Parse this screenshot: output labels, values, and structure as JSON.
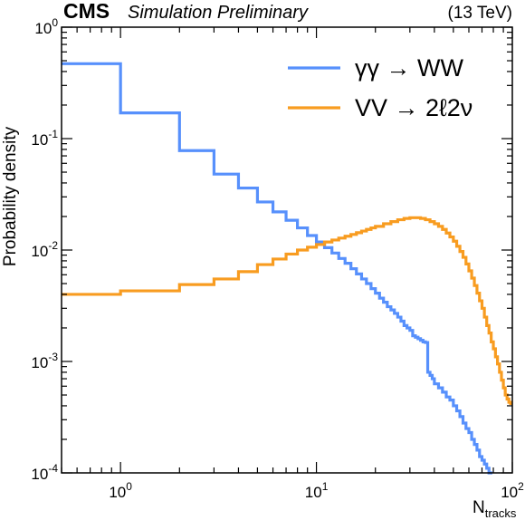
{
  "chart_data": {
    "type": "line",
    "experiment": "CMS",
    "subtitle": "Simulation Preliminary",
    "energy_label": "(13 TeV)",
    "xlabel": {
      "main": "N",
      "sub": "tracks"
    },
    "ylabel": "Probability density",
    "x_scale": "log",
    "y_scale": "log",
    "xlim": [
      0.5,
      100
    ],
    "ylim": [
      0.0001,
      1
    ],
    "x_ticks": [
      {
        "base": "10",
        "exp": "0",
        "value": 1
      },
      {
        "base": "10",
        "exp": "1",
        "value": 10
      },
      {
        "base": "10",
        "exp": "2",
        "value": 100
      }
    ],
    "y_ticks": [
      {
        "base": "10",
        "exp": "0",
        "value": 1
      },
      {
        "base": "10",
        "exp": "-1",
        "value": 0.1
      },
      {
        "base": "10",
        "exp": "-2",
        "value": 0.01
      },
      {
        "base": "10",
        "exp": "-3",
        "value": 0.001
      },
      {
        "base": "10",
        "exp": "-4",
        "value": 0.0001
      }
    ],
    "grid": false,
    "legend_position": "top-right",
    "series": [
      {
        "name": "γγ → WW",
        "color": "#5790fc",
        "drawstyle": "steps-post",
        "points": [
          [
            0.5,
            0.47
          ],
          [
            1,
            0.17
          ],
          [
            2,
            0.078
          ],
          [
            3,
            0.048
          ],
          [
            4,
            0.036
          ],
          [
            5,
            0.027
          ],
          [
            6,
            0.022
          ],
          [
            7,
            0.0185
          ],
          [
            8,
            0.0158
          ],
          [
            9,
            0.0135
          ],
          [
            10,
            0.0118
          ],
          [
            11,
            0.0105
          ],
          [
            12,
            0.0094
          ],
          [
            13,
            0.0084
          ],
          [
            14,
            0.0076
          ],
          [
            15,
            0.0068
          ],
          [
            16,
            0.0061
          ],
          [
            17,
            0.0055
          ],
          [
            18,
            0.005
          ],
          [
            19,
            0.0045
          ],
          [
            20,
            0.0041
          ],
          [
            21,
            0.0037
          ],
          [
            22,
            0.0034
          ],
          [
            23,
            0.0031
          ],
          [
            24,
            0.0029
          ],
          [
            25,
            0.0027
          ],
          [
            26,
            0.0025
          ],
          [
            27,
            0.0023
          ],
          [
            28,
            0.0021
          ],
          [
            29,
            0.002
          ],
          [
            30,
            0.0019
          ],
          [
            31,
            0.0017
          ],
          [
            32,
            0.00165
          ],
          [
            33,
            0.0016
          ],
          [
            34,
            0.00155
          ],
          [
            35,
            0.0015
          ],
          [
            36,
            0.00148
          ],
          [
            37,
            0.0008
          ],
          [
            38,
            0.00075
          ],
          [
            39,
            0.0007
          ],
          [
            40,
            0.00063
          ],
          [
            42,
            0.00058
          ],
          [
            44,
            0.00053
          ],
          [
            46,
            0.00048
          ],
          [
            48,
            0.00045
          ],
          [
            50,
            0.0004
          ],
          [
            52,
            0.00036
          ],
          [
            54,
            0.00032
          ],
          [
            56,
            0.00028
          ],
          [
            58,
            0.00025
          ],
          [
            60,
            0.00023
          ],
          [
            62,
            0.0002
          ],
          [
            64,
            0.00018
          ],
          [
            66,
            0.00016
          ],
          [
            68,
            0.00014
          ],
          [
            70,
            0.00013
          ],
          [
            72,
            0.00012
          ],
          [
            74,
            0.00011
          ],
          [
            76,
            0.0001
          ]
        ]
      },
      {
        "name": "VV → 2ℓ2ν",
        "color": "#f89c20",
        "drawstyle": "steps-post",
        "points": [
          [
            0.5,
            0.004
          ],
          [
            1,
            0.0043
          ],
          [
            2,
            0.0049
          ],
          [
            3,
            0.0055
          ],
          [
            4,
            0.0064
          ],
          [
            5,
            0.0074
          ],
          [
            6,
            0.0083
          ],
          [
            7,
            0.0092
          ],
          [
            8,
            0.01
          ],
          [
            9,
            0.0106
          ],
          [
            10,
            0.0112
          ],
          [
            11,
            0.0118
          ],
          [
            12,
            0.0123
          ],
          [
            13,
            0.0128
          ],
          [
            14,
            0.0133
          ],
          [
            15,
            0.0138
          ],
          [
            16,
            0.0143
          ],
          [
            17,
            0.0148
          ],
          [
            18,
            0.0153
          ],
          [
            19,
            0.0158
          ],
          [
            20,
            0.0163
          ],
          [
            22,
            0.0172
          ],
          [
            24,
            0.018
          ],
          [
            26,
            0.0187
          ],
          [
            28,
            0.0192
          ],
          [
            30,
            0.0195
          ],
          [
            32,
            0.0195
          ],
          [
            34,
            0.0192
          ],
          [
            36,
            0.0187
          ],
          [
            38,
            0.018
          ],
          [
            40,
            0.0172
          ],
          [
            42,
            0.0163
          ],
          [
            44,
            0.0153
          ],
          [
            46,
            0.0142
          ],
          [
            48,
            0.0131
          ],
          [
            50,
            0.012
          ],
          [
            52,
            0.0108
          ],
          [
            54,
            0.0097
          ],
          [
            56,
            0.0086
          ],
          [
            58,
            0.0075
          ],
          [
            60,
            0.0065
          ],
          [
            62,
            0.0056
          ],
          [
            64,
            0.0048
          ],
          [
            66,
            0.0041
          ],
          [
            68,
            0.0035
          ],
          [
            70,
            0.003
          ],
          [
            72,
            0.0025
          ],
          [
            74,
            0.0021
          ],
          [
            76,
            0.0018
          ],
          [
            78,
            0.0015
          ],
          [
            80,
            0.0013
          ],
          [
            82,
            0.0011
          ],
          [
            84,
            0.00095
          ],
          [
            86,
            0.0008
          ],
          [
            88,
            0.00068
          ],
          [
            90,
            0.00058
          ],
          [
            92,
            0.0005
          ],
          [
            94,
            0.00046
          ],
          [
            96,
            0.00043
          ],
          [
            98,
            0.00042
          ],
          [
            100,
            0.00042
          ]
        ]
      }
    ]
  }
}
